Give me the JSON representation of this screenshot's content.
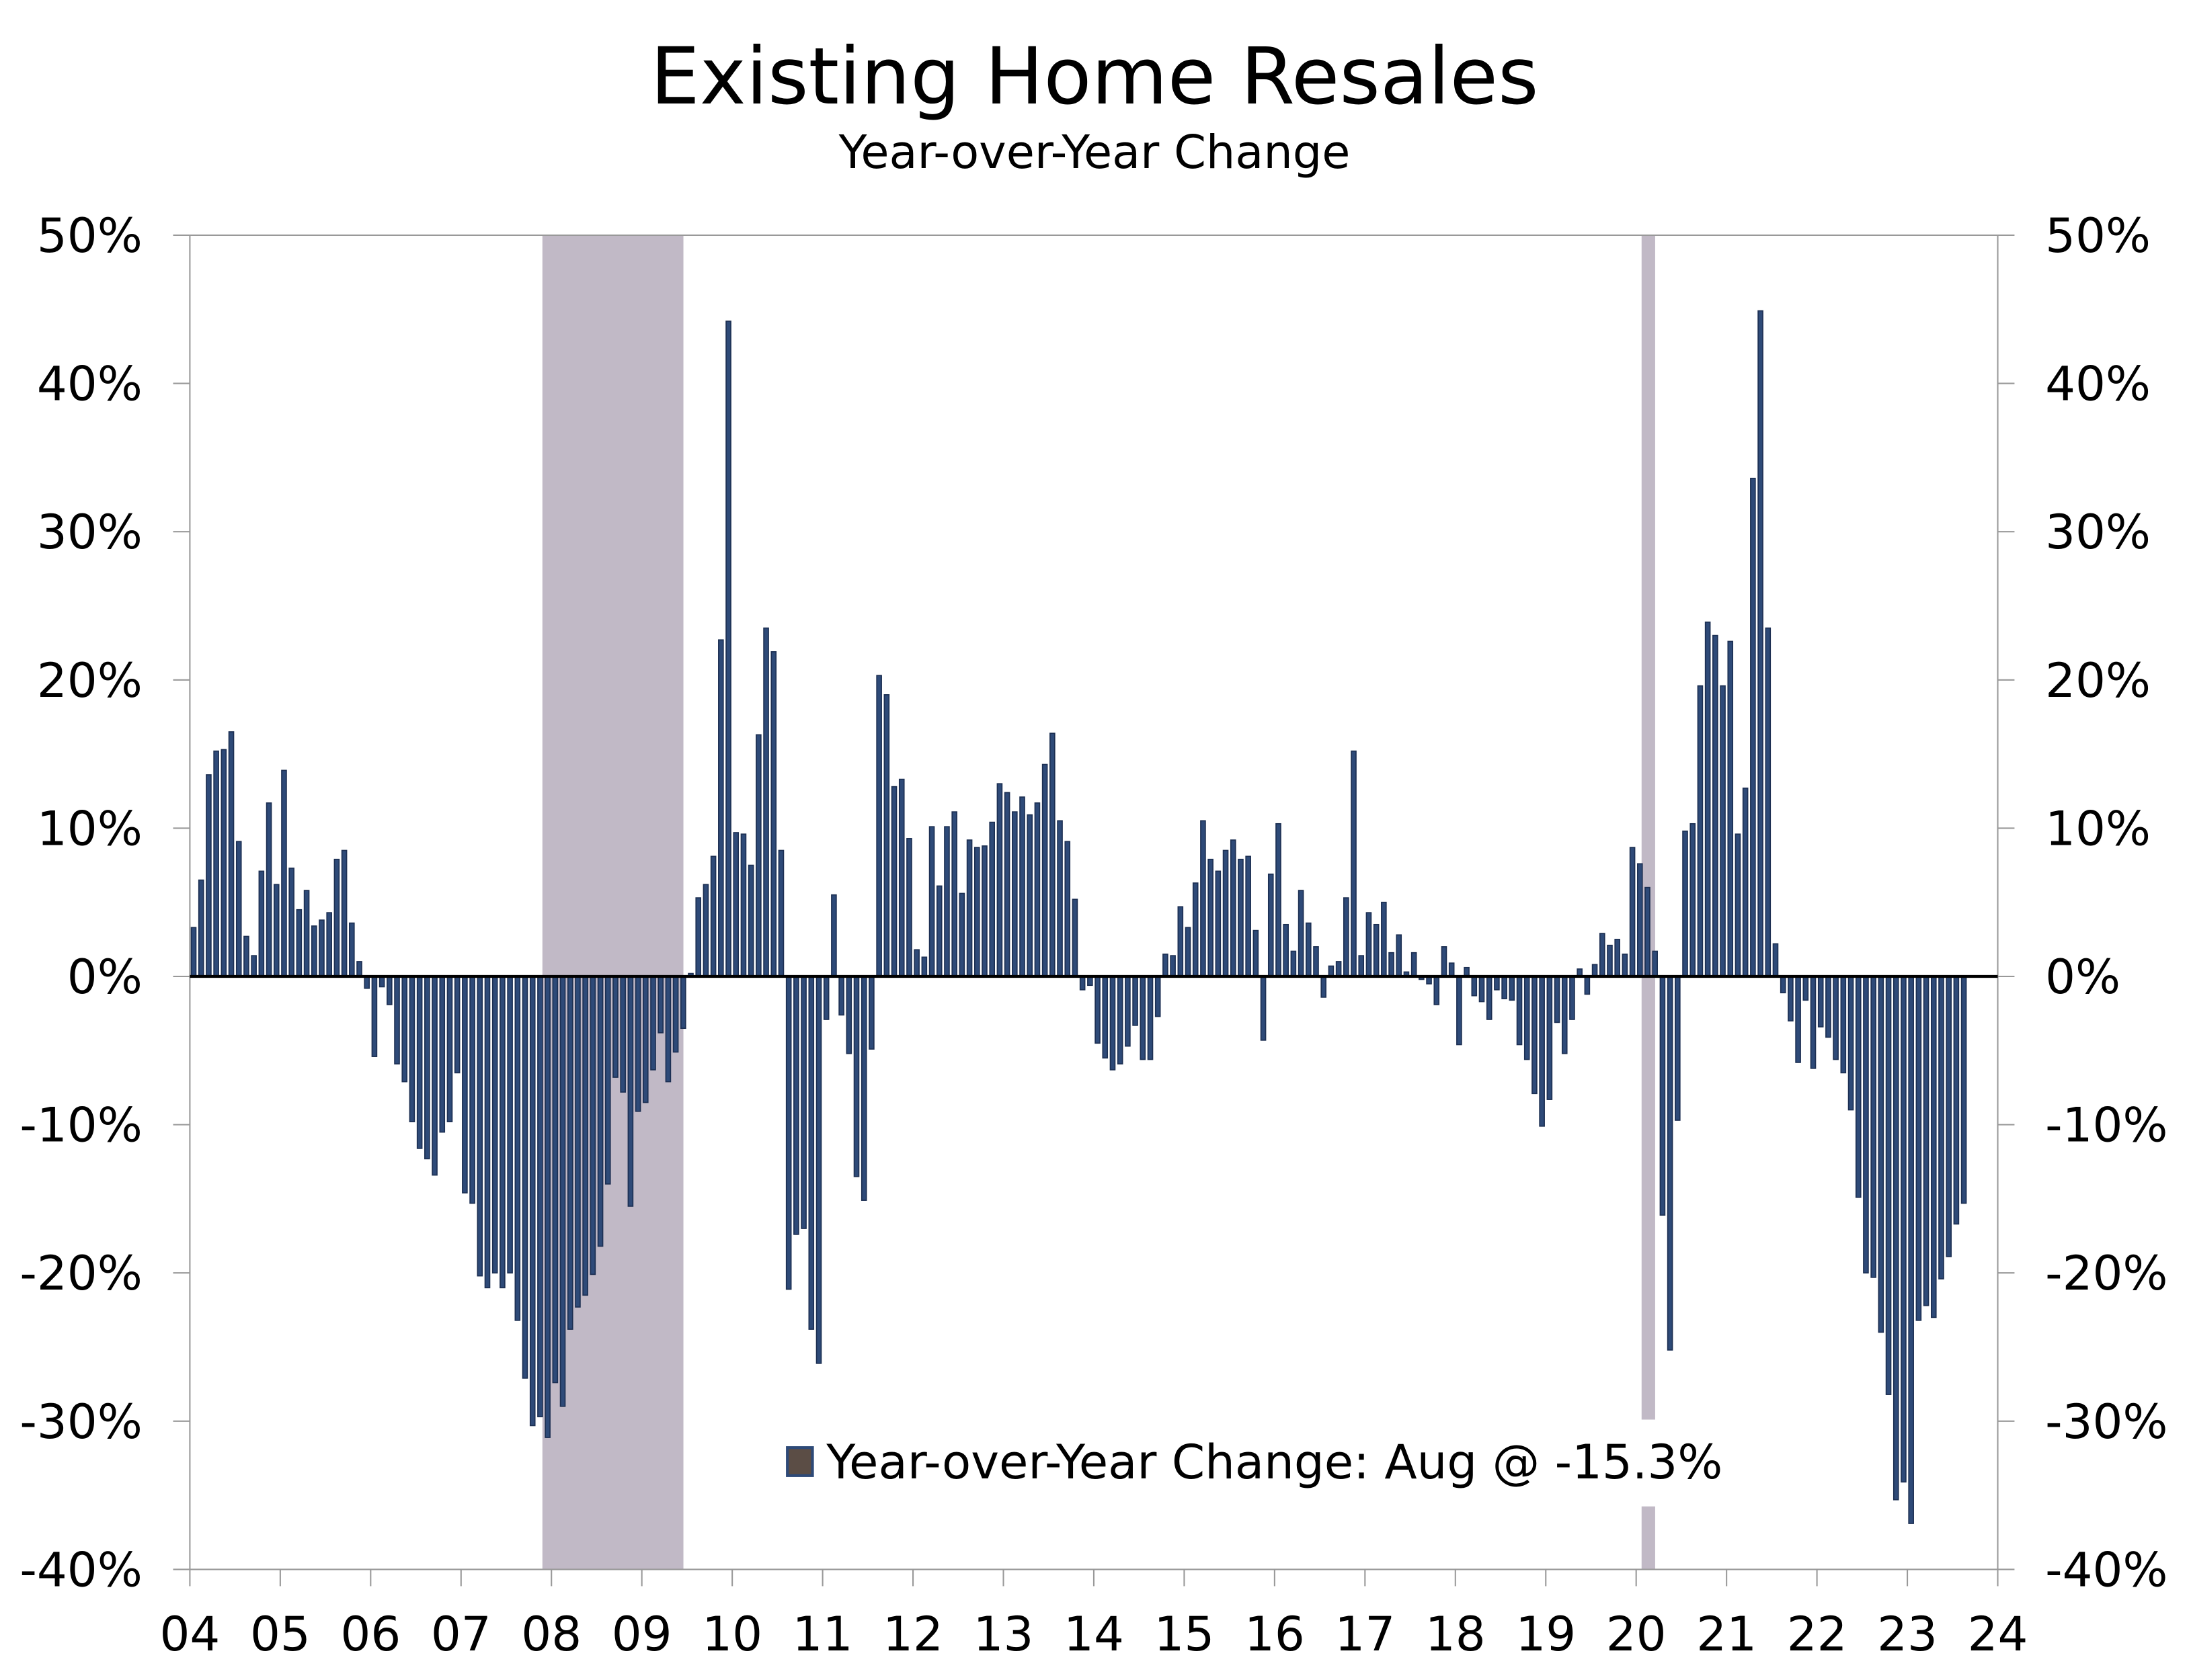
{
  "chart_data": {
    "type": "bar",
    "title": "Existing Home Resales",
    "subtitle": "Year-over-Year Change",
    "series": [
      {
        "name": "Year-over-Year Change: Aug @ -15.3%",
        "color": "#2e4a78",
        "legend_color": "#5b4d45",
        "values": [
          3.3,
          6.5,
          13.6,
          15.2,
          15.3,
          16.5,
          9.1,
          2.7,
          1.4,
          7.1,
          11.7,
          6.2,
          13.9,
          7.3,
          4.5,
          5.8,
          3.4,
          3.8,
          4.3,
          7.9,
          8.5,
          3.6,
          1.0,
          -0.8,
          -5.4,
          -0.7,
          -1.9,
          -5.9,
          -7.1,
          -9.8,
          -11.6,
          -12.3,
          -13.4,
          -10.5,
          -9.8,
          -6.5,
          -14.6,
          -15.3,
          -20.2,
          -21.0,
          -20.0,
          -21.0,
          -20.0,
          -23.2,
          -27.1,
          -30.3,
          -29.7,
          -31.1,
          -27.4,
          -29.0,
          -23.8,
          -22.3,
          -21.5,
          -20.1,
          -18.2,
          -14.0,
          -6.8,
          -7.8,
          -15.5,
          -9.1,
          -8.5,
          -6.3,
          -3.8,
          -7.1,
          -5.1,
          -3.5,
          0.2,
          5.3,
          6.2,
          8.1,
          22.7,
          44.2,
          9.7,
          9.6,
          7.5,
          16.3,
          23.5,
          21.9,
          8.5,
          -21.1,
          -17.4,
          -17.0,
          -23.8,
          -26.1,
          -2.9,
          5.5,
          -2.6,
          -5.2,
          -13.5,
          -15.1,
          -4.9,
          20.3,
          19.0,
          12.8,
          13.3,
          9.3,
          1.8,
          1.3,
          10.1,
          6.1,
          10.1,
          11.1,
          5.6,
          9.2,
          8.7,
          8.8,
          10.4,
          13.0,
          12.4,
          11.1,
          12.1,
          10.9,
          11.7,
          14.3,
          16.4,
          10.5,
          9.1,
          5.2,
          -0.9,
          -0.6,
          -4.5,
          -5.5,
          -6.3,
          -5.9,
          -4.7,
          -3.3,
          -5.6,
          -5.6,
          -2.7,
          1.5,
          1.4,
          4.7,
          3.3,
          6.3,
          10.5,
          7.9,
          7.1,
          8.5,
          9.2,
          7.9,
          8.1,
          3.1,
          -4.3,
          6.9,
          10.3,
          3.5,
          1.7,
          5.8,
          3.6,
          2.0,
          -1.4,
          0.7,
          1.0,
          5.3,
          15.2,
          1.4,
          4.3,
          3.5,
          5.0,
          1.6,
          2.8,
          0.3,
          1.6,
          -0.2,
          -0.5,
          -1.9,
          2.0,
          0.9,
          -4.6,
          0.6,
          -1.3,
          -1.7,
          -2.9,
          -0.9,
          -1.5,
          -1.6,
          -4.6,
          -5.6,
          -7.9,
          -10.1,
          -8.3,
          -3.1,
          -5.2,
          -2.9,
          0.5,
          -1.2,
          0.8,
          2.9,
          2.1,
          2.5,
          1.5,
          8.7,
          7.6,
          6.0,
          1.7,
          -16.1,
          -25.2,
          -9.7,
          9.8,
          10.3,
          19.6,
          23.9,
          23.0,
          19.6,
          22.6,
          9.6,
          12.7,
          33.6,
          44.9,
          23.5,
          2.2,
          -1.1,
          -3.0,
          -5.8,
          -1.6,
          -6.2,
          -3.4,
          -4.1,
          -5.6,
          -6.5,
          -9.0,
          -14.9,
          -20.0,
          -20.3,
          -24.0,
          -28.2,
          -35.3,
          -34.1,
          -36.9,
          -23.2,
          -22.2,
          -23.0,
          -20.4,
          -18.9,
          -16.7,
          -15.3
        ]
      }
    ],
    "recessions": [
      [
        2007.9,
        2009.46
      ],
      [
        2020.06,
        2020.21
      ]
    ],
    "recession_color": "#c1b9c6",
    "xlim": [
      2004,
      2024
    ],
    "xticks": [
      {
        "value": 2004,
        "label": "04"
      },
      {
        "value": 2005,
        "label": "05"
      },
      {
        "value": 2006,
        "label": "06"
      },
      {
        "value": 2007,
        "label": "07"
      },
      {
        "value": 2008,
        "label": "08"
      },
      {
        "value": 2009,
        "label": "09"
      },
      {
        "value": 2010,
        "label": "10"
      },
      {
        "value": 2011,
        "label": "11"
      },
      {
        "value": 2012,
        "label": "12"
      },
      {
        "value": 2013,
        "label": "13"
      },
      {
        "value": 2014,
        "label": "14"
      },
      {
        "value": 2015,
        "label": "15"
      },
      {
        "value": 2016,
        "label": "16"
      },
      {
        "value": 2017,
        "label": "17"
      },
      {
        "value": 2018,
        "label": "18"
      },
      {
        "value": 2019,
        "label": "19"
      },
      {
        "value": 2020,
        "label": "20"
      },
      {
        "value": 2021,
        "label": "21"
      },
      {
        "value": 2022,
        "label": "22"
      },
      {
        "value": 2023,
        "label": "23"
      },
      {
        "value": 2024,
        "label": "24"
      }
    ],
    "ylim": [
      -40,
      50
    ],
    "yticks": [
      {
        "value": -40,
        "label": "-40%"
      },
      {
        "value": -30,
        "label": "-30%"
      },
      {
        "value": -20,
        "label": "-20%"
      },
      {
        "value": -10,
        "label": "-10%"
      },
      {
        "value": 0,
        "label": "0%"
      },
      {
        "value": 10,
        "label": "10%"
      },
      {
        "value": 20,
        "label": "20%"
      },
      {
        "value": 30,
        "label": "30%"
      },
      {
        "value": 40,
        "label": "40%"
      },
      {
        "value": 50,
        "label": "50%"
      }
    ],
    "y2lim": [
      -40,
      50
    ],
    "y2ticks": [
      {
        "value": -40,
        "label": "-40%"
      },
      {
        "value": -30,
        "label": "-30%"
      },
      {
        "value": -20,
        "label": "-20%"
      },
      {
        "value": -10,
        "label": "-10%"
      },
      {
        "value": 0,
        "label": "0%"
      },
      {
        "value": 10,
        "label": "10%"
      },
      {
        "value": 20,
        "label": "20%"
      },
      {
        "value": 30,
        "label": "30%"
      },
      {
        "value": 40,
        "label": "40%"
      },
      {
        "value": 50,
        "label": "50%"
      }
    ],
    "grid": false
  }
}
